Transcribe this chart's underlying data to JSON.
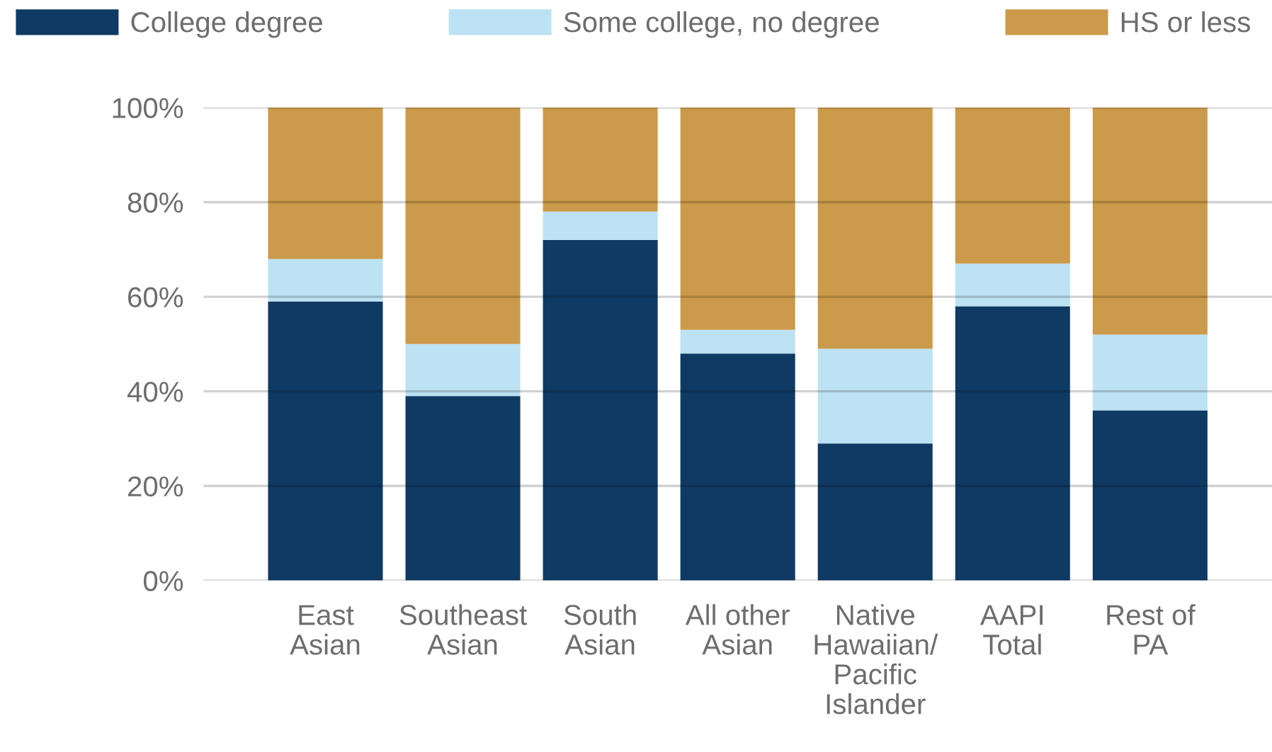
{
  "chart_data": {
    "type": "bar",
    "stacked": true,
    "categories": [
      "East\nAsian",
      "Southeast\nAsian",
      "South\nAsian",
      "All other\nAsian",
      "Native\nHawaiian/\nPacific\nIslander",
      "AAPI\nTotal",
      "Rest of\nPA"
    ],
    "series": [
      {
        "name": "College degree",
        "color": "#0f3a64",
        "values": [
          59,
          39,
          72,
          48,
          29,
          58,
          36
        ]
      },
      {
        "name": "Some college, no degree",
        "color": "#bde2f4",
        "values": [
          9,
          11,
          6,
          5,
          20,
          9,
          16
        ]
      },
      {
        "name": "HS or less",
        "color": "#cb9a4a",
        "values": [
          32,
          50,
          22,
          47,
          51,
          33,
          48
        ]
      }
    ],
    "ylim": [
      0,
      100
    ],
    "yticks": [
      {
        "value": 0,
        "label": "0%"
      },
      {
        "value": 20,
        "label": "20%"
      },
      {
        "value": 40,
        "label": "40%"
      },
      {
        "value": 60,
        "label": "60%"
      },
      {
        "value": 80,
        "label": "80%"
      },
      {
        "value": 100,
        "label": "100%"
      }
    ],
    "grid": "y",
    "legend": "top"
  }
}
